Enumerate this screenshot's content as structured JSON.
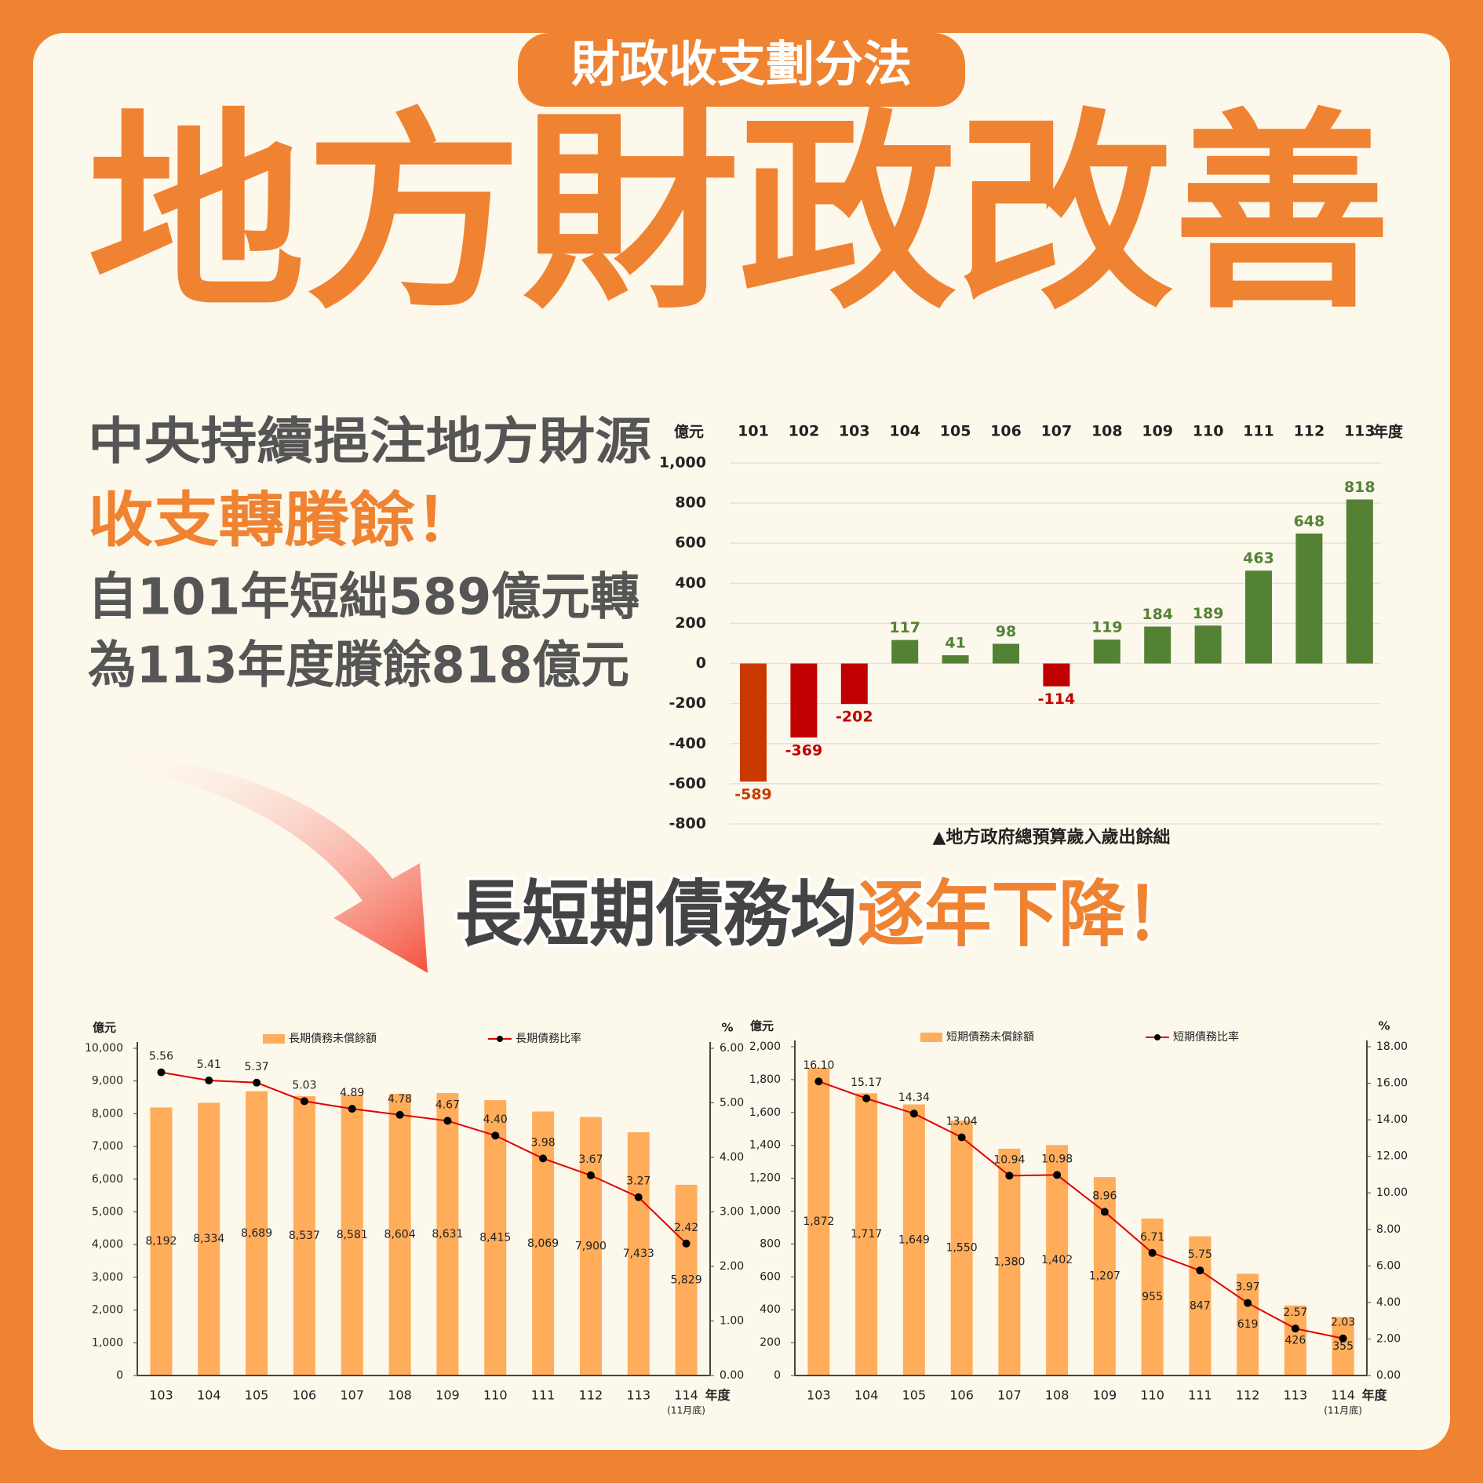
{
  "header": {
    "tag": "財政收支劃分法",
    "title": "地方財政改善"
  },
  "intro": {
    "line1": "中央持續挹注地方財源",
    "line2": "收支轉賸餘！",
    "line3": "自101年短絀589億元轉",
    "line4": "為113年度賸餘818億元"
  },
  "subheading": {
    "part1": "長短期債務均",
    "part2": "逐年下降！"
  },
  "chart_data": [
    {
      "type": "bar",
      "caption": "▲地方政府總預算歲入歲出餘絀",
      "y_label": "億元",
      "x_label": "年度",
      "x_labels": "top",
      "grid": true,
      "categories": [
        "101",
        "102",
        "103",
        "104",
        "105",
        "106",
        "107",
        "108",
        "109",
        "110",
        "111",
        "112",
        "113"
      ],
      "values": [
        -589,
        -369,
        -202,
        117,
        41,
        98,
        -114,
        119,
        184,
        189,
        463,
        648,
        818
      ],
      "colors": [
        "#c93a00",
        "#c00000",
        "#c00000",
        "#548235",
        "#548235",
        "#548235",
        "#c00000",
        "#548235",
        "#548235",
        "#548235",
        "#548235",
        "#548235",
        "#548235"
      ],
      "ylim": [
        -800,
        1000
      ],
      "yticks": [
        {
          "value": 1000,
          "label": "1,000"
        },
        800,
        600,
        400,
        200,
        0,
        -200,
        -400,
        -600,
        -800
      ]
    },
    {
      "type": "combo",
      "y_label": "億元",
      "y2_label": "%",
      "x_label": "年度",
      "categories": [
        "103",
        "104",
        "105",
        "106",
        "107",
        "108",
        "109",
        "110",
        "111",
        "112",
        "113",
        "114"
      ],
      "category_note": "(11月底)",
      "series": [
        {
          "name": "長期債務未償餘額",
          "color": "#ffad5a",
          "values": [
            8192,
            8334,
            8689,
            8537,
            8581,
            8604,
            8631,
            8415,
            8069,
            7900,
            7433,
            5829
          ],
          "value_labels": [
            "8,192",
            "8,334",
            "8,689",
            "8,537",
            "8,581",
            "8,604",
            "8,631",
            "8,415",
            "8,069",
            "7,900",
            "7,433",
            "5,829"
          ]
        },
        {
          "name": "長期債務比率",
          "color": "#e00000",
          "marker_color": "#000000",
          "axis": "y2",
          "values": [
            5.56,
            5.41,
            5.37,
            5.03,
            4.89,
            4.78,
            4.67,
            4.4,
            3.98,
            3.67,
            3.27,
            2.42
          ],
          "value_labels": [
            "5.56",
            "5.41",
            "5.37",
            "5.03",
            "4.89",
            "4.78",
            "4.67",
            "4.40",
            "3.98",
            "3.67",
            "3.27",
            "2.42"
          ]
        }
      ],
      "ylim": [
        0,
        10000
      ],
      "yticks": [
        0,
        {
          "value": 1000,
          "label": "1,000"
        },
        {
          "value": 2000,
          "label": "2,000"
        },
        {
          "value": 3000,
          "label": "3,000"
        },
        {
          "value": 4000,
          "label": "4,000"
        },
        {
          "value": 5000,
          "label": "5,000"
        },
        {
          "value": 6000,
          "label": "6,000"
        },
        {
          "value": 7000,
          "label": "7,000"
        },
        {
          "value": 8000,
          "label": "8,000"
        },
        {
          "value": 9000,
          "label": "9,000"
        },
        {
          "value": 10000,
          "label": "10,000"
        }
      ],
      "y2lim": [
        0,
        6
      ],
      "y2ticks": [
        {
          "value": 0,
          "label": "0.00"
        },
        {
          "value": 1,
          "label": "1.00"
        },
        {
          "value": 2,
          "label": "2.00"
        },
        {
          "value": 3,
          "label": "3.00"
        },
        {
          "value": 4,
          "label": "4.00"
        },
        {
          "value": 5,
          "label": "5.00"
        },
        {
          "value": 6,
          "label": "6.00"
        }
      ]
    },
    {
      "type": "combo",
      "y_label": "億元",
      "y2_label": "%",
      "x_label": "年度",
      "categories": [
        "103",
        "104",
        "105",
        "106",
        "107",
        "108",
        "109",
        "110",
        "111",
        "112",
        "113",
        "114"
      ],
      "category_note": "(11月底)",
      "series": [
        {
          "name": "短期債務未償餘額",
          "color": "#ffad5a",
          "values": [
            1872,
            1717,
            1649,
            1550,
            1380,
            1402,
            1207,
            955,
            847,
            619,
            426,
            355
          ],
          "value_labels": [
            "1,872",
            "1,717",
            "1,649",
            "1,550",
            "1,380",
            "1,402",
            "1,207",
            "955",
            "847",
            "619",
            "426",
            "355"
          ]
        },
        {
          "name": "短期債務比率",
          "color": "#e00000",
          "marker_color": "#000000",
          "axis": "y2",
          "values": [
            16.1,
            15.17,
            14.34,
            13.04,
            10.94,
            10.98,
            8.96,
            6.71,
            5.75,
            3.97,
            2.57,
            2.03
          ],
          "value_labels": [
            "16.10",
            "15.17",
            "14.34",
            "13.04",
            "10.94",
            "10.98",
            "8.96",
            "6.71",
            "5.75",
            "3.97",
            "2.57",
            "2.03"
          ]
        }
      ],
      "ylim": [
        0,
        2000
      ],
      "yticks": [
        0,
        200,
        400,
        600,
        800,
        {
          "value": 1000,
          "label": "1,000"
        },
        {
          "value": 1200,
          "label": "1,200"
        },
        {
          "value": 1400,
          "label": "1,400"
        },
        {
          "value": 1600,
          "label": "1,600"
        },
        {
          "value": 1800,
          "label": "1,800"
        },
        {
          "value": 2000,
          "label": "2,000"
        }
      ],
      "y2lim": [
        0,
        18
      ],
      "y2ticks": [
        {
          "value": 0,
          "label": "0.00"
        },
        {
          "value": 2,
          "label": "2.00"
        },
        {
          "value": 4,
          "label": "4.00"
        },
        {
          "value": 6,
          "label": "6.00"
        },
        {
          "value": 8,
          "label": "8.00"
        },
        {
          "value": 10,
          "label": "10.00"
        },
        {
          "value": 12,
          "label": "12.00"
        },
        {
          "value": 14,
          "label": "14.00"
        },
        {
          "value": 16,
          "label": "16.00"
        },
        {
          "value": 18,
          "label": "18.00"
        }
      ]
    }
  ]
}
